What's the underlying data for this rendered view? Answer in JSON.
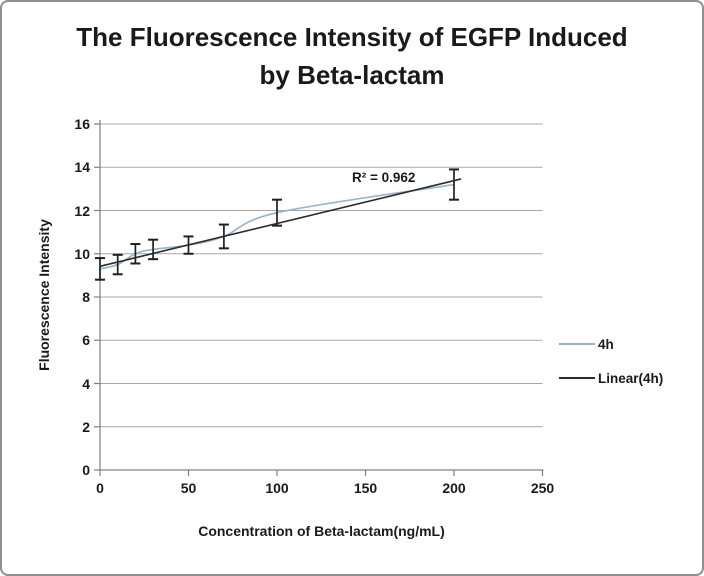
{
  "figure": {
    "background": "#ffffff",
    "border_color": "#8f8f8f"
  },
  "chart_data": {
    "type": "line",
    "title": "The Fluorescence Intensity of EGFP Induced by Beta-lactam",
    "xlabel": "Concentration of Beta-lactam(ng/mL)",
    "ylabel": "Fluorescence Intensity",
    "xlim": [
      0,
      250
    ],
    "ylim": [
      0,
      16
    ],
    "x_ticks": [
      0,
      50,
      100,
      150,
      200,
      250
    ],
    "y_ticks": [
      0,
      2,
      4,
      6,
      8,
      10,
      12,
      14,
      16
    ],
    "grid": "horizontal",
    "legend_position": "right",
    "annotation": "R² = 0.962",
    "colors": {
      "axis": "#808080",
      "gridline": "#a8a8a8",
      "error_bar": "#1f1f1f",
      "text": "#1a1a1a"
    },
    "series": [
      {
        "name": "4h",
        "color": "#9bb3cb",
        "line_style": "smooth",
        "x": [
          0,
          10,
          20,
          30,
          50,
          70,
          100,
          200
        ],
        "y": [
          9.3,
          9.5,
          10.0,
          10.2,
          10.4,
          10.8,
          11.9,
          13.2
        ],
        "y_error": [
          0.5,
          0.45,
          0.45,
          0.45,
          0.4,
          0.55,
          0.6,
          0.7
        ]
      },
      {
        "name": "Linear(4h)",
        "color": "#2b2b2b",
        "line_style": "straight",
        "x": [
          0,
          204
        ],
        "y": [
          9.42,
          13.46
        ]
      }
    ]
  }
}
